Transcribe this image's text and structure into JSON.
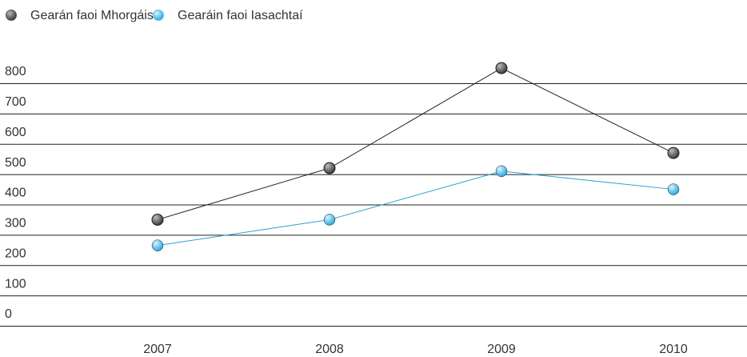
{
  "chart_data": {
    "type": "line",
    "categories": [
      "2007",
      "2008",
      "2009",
      "2010"
    ],
    "series": [
      {
        "name": "Gearán faoi Mhorgáistí",
        "color": "#5a5a5a",
        "line_color": "#222222",
        "values": [
          350,
          520,
          850,
          570
        ]
      },
      {
        "name": "Gearáin faoi Iasachtaí",
        "color": "#5bc3ee",
        "line_color": "#2a9fd6",
        "values": [
          265,
          350,
          510,
          450
        ]
      }
    ],
    "ylim": [
      0,
      800
    ],
    "yticks": [
      0,
      100,
      200,
      300,
      400,
      500,
      600,
      700,
      800
    ],
    "grid": true
  }
}
